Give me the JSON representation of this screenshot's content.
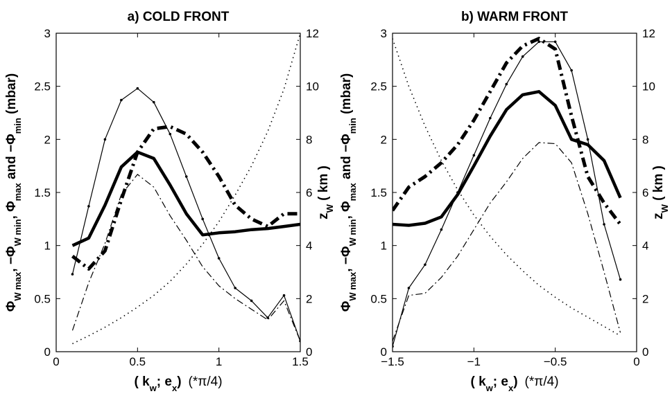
{
  "chart_data": [
    {
      "type": "line",
      "title": "a) COLD FRONT",
      "xlabel": {
        "open": "( ",
        "k": "k",
        "k_sub": "w",
        "sep": "; ",
        "e": "e",
        "e_sub": "x",
        "close": ")",
        "unit": "(*π/4)"
      },
      "ylabel_left": {
        "a": "Φ",
        "a_sub": "W max",
        "b": ", −Φ",
        "b_sub": "W min",
        "c": ", Φ",
        "c_sub": "max",
        "d": " and −Φ",
        "d_sub": "min",
        "unit": " (mbar)"
      },
      "ylabel_right": {
        "main": "z",
        "sub": "W",
        "unit": " ( km )"
      },
      "xlim": [
        0,
        1.5
      ],
      "ylim_left": [
        0,
        3
      ],
      "ylim_right": [
        0,
        12
      ],
      "xticks": [
        0,
        0.5,
        1,
        1.5
      ],
      "xtick_labels": [
        "0",
        "0.5",
        "1",
        "1.5"
      ],
      "yticks_left": [
        0,
        0.5,
        1,
        1.5,
        2,
        2.5,
        3
      ],
      "ytick_labels_left": [
        "0",
        "0.5",
        "1",
        "1.5",
        "2",
        "2.5",
        "3"
      ],
      "yticks_right": [
        0,
        2,
        4,
        6,
        8,
        10,
        12
      ],
      "ytick_labels_right": [
        "0",
        "2",
        "4",
        "6",
        "8",
        "10",
        "12"
      ],
      "series": [
        {
          "style": "thin-solid",
          "axis": "left",
          "x": [
            0.1,
            0.2,
            0.3,
            0.4,
            0.5,
            0.6,
            0.7,
            0.8,
            0.9,
            1.0,
            1.1,
            1.2,
            1.3,
            1.4,
            1.5
          ],
          "y": [
            0.73,
            1.37,
            2.0,
            2.37,
            2.48,
            2.35,
            2.05,
            1.65,
            1.25,
            0.88,
            0.6,
            0.48,
            0.32,
            0.53,
            0.1
          ]
        },
        {
          "style": "thick-solid",
          "axis": "left",
          "x": [
            0.1,
            0.2,
            0.3,
            0.4,
            0.5,
            0.6,
            0.7,
            0.8,
            0.9,
            1.0,
            1.1,
            1.2,
            1.3,
            1.4,
            1.5
          ],
          "y": [
            1.0,
            1.07,
            1.38,
            1.74,
            1.88,
            1.82,
            1.57,
            1.3,
            1.1,
            1.12,
            1.13,
            1.15,
            1.16,
            1.18,
            1.2
          ]
        },
        {
          "style": "thick-dashdot",
          "axis": "left",
          "x": [
            0.1,
            0.2,
            0.3,
            0.4,
            0.5,
            0.6,
            0.7,
            0.8,
            0.9,
            1.0,
            1.1,
            1.2,
            1.3,
            1.4,
            1.5
          ],
          "y": [
            0.9,
            0.78,
            0.95,
            1.43,
            1.88,
            2.1,
            2.12,
            2.05,
            1.88,
            1.65,
            1.38,
            1.25,
            1.18,
            1.3,
            1.3
          ]
        },
        {
          "style": "thin-dashdot",
          "axis": "left",
          "x": [
            0.1,
            0.2,
            0.3,
            0.4,
            0.5,
            0.6,
            0.7,
            0.8,
            0.9,
            1.0,
            1.1,
            1.2,
            1.3,
            1.4,
            1.5
          ],
          "y": [
            0.2,
            0.65,
            1.02,
            1.48,
            1.67,
            1.55,
            1.28,
            1.05,
            0.8,
            0.62,
            0.5,
            0.4,
            0.3,
            0.48,
            0.1
          ]
        },
        {
          "style": "dotted",
          "axis": "right",
          "x": [
            0.1,
            0.2,
            0.3,
            0.4,
            0.5,
            0.6,
            0.7,
            0.8,
            0.9,
            1.0,
            1.1,
            1.2,
            1.3,
            1.4,
            1.5
          ],
          "y": [
            0.3,
            0.6,
            0.92,
            1.28,
            1.68,
            2.12,
            2.65,
            3.3,
            4.05,
            4.9,
            5.9,
            7.0,
            8.3,
            9.9,
            12.0
          ]
        }
      ]
    },
    {
      "type": "line",
      "title": "b) WARM FRONT",
      "xlabel": {
        "open": "( ",
        "k": "k",
        "k_sub": "w",
        "sep": "; ",
        "e": "e",
        "e_sub": "x",
        "close": ")",
        "unit": "(*π/4)"
      },
      "ylabel_left": {
        "a": "Φ",
        "a_sub": "W max",
        "b": ", −Φ",
        "b_sub": "W min",
        "c": ", Φ",
        "c_sub": "max",
        "d": " and −Φ",
        "d_sub": "min",
        "unit": " (mbar)"
      },
      "ylabel_right": {
        "main": "z",
        "sub": "W",
        "unit": " ( km )"
      },
      "xlim": [
        -1.5,
        0
      ],
      "ylim_left": [
        0,
        3
      ],
      "ylim_right": [
        0,
        12
      ],
      "xticks": [
        -1.5,
        -1,
        -0.5,
        0
      ],
      "xtick_labels": [
        "−1.5",
        "−1",
        "−0.5",
        "0"
      ],
      "yticks_left": [
        0,
        0.5,
        1,
        1.5,
        2,
        2.5,
        3
      ],
      "ytick_labels_left": [
        "0",
        "0.5",
        "1",
        "1.5",
        "2",
        "2.5",
        "3"
      ],
      "yticks_right": [
        0,
        2,
        4,
        6,
        8,
        10,
        12
      ],
      "ytick_labels_right": [
        "0",
        "2",
        "4",
        "6",
        "8",
        "10",
        "12"
      ],
      "series": [
        {
          "style": "thin-solid",
          "axis": "left",
          "x": [
            -1.5,
            -1.4,
            -1.3,
            -1.2,
            -1.1,
            -1.0,
            -0.9,
            -0.8,
            -0.7,
            -0.6,
            -0.5,
            -0.4,
            -0.3,
            -0.2,
            -0.1
          ],
          "y": [
            0.05,
            0.6,
            0.82,
            1.15,
            1.5,
            1.85,
            2.2,
            2.52,
            2.78,
            2.92,
            2.92,
            2.65,
            2.0,
            1.2,
            0.68
          ]
        },
        {
          "style": "thick-solid",
          "axis": "left",
          "x": [
            -1.5,
            -1.4,
            -1.3,
            -1.2,
            -1.1,
            -1.0,
            -0.9,
            -0.8,
            -0.7,
            -0.6,
            -0.5,
            -0.4,
            -0.3,
            -0.2,
            -0.1
          ],
          "y": [
            1.2,
            1.19,
            1.21,
            1.27,
            1.48,
            1.75,
            2.03,
            2.28,
            2.42,
            2.45,
            2.32,
            2.0,
            1.95,
            1.8,
            1.45
          ]
        },
        {
          "style": "thick-dashdot",
          "axis": "left",
          "x": [
            -1.5,
            -1.4,
            -1.3,
            -1.2,
            -1.1,
            -1.0,
            -0.9,
            -0.8,
            -0.7,
            -0.6,
            -0.5,
            -0.4,
            -0.3,
            -0.2,
            -0.1
          ],
          "y": [
            1.33,
            1.55,
            1.65,
            1.78,
            1.95,
            2.18,
            2.45,
            2.72,
            2.88,
            2.95,
            2.85,
            2.22,
            1.65,
            1.4,
            1.2
          ]
        },
        {
          "style": "thin-dashdot",
          "axis": "left",
          "x": [
            -1.5,
            -1.4,
            -1.3,
            -1.2,
            -1.1,
            -1.0,
            -0.9,
            -0.8,
            -0.7,
            -0.6,
            -0.5,
            -0.4,
            -0.3,
            -0.2,
            -0.1
          ],
          "y": [
            0.1,
            0.53,
            0.55,
            0.7,
            0.9,
            1.15,
            1.4,
            1.6,
            1.82,
            1.97,
            1.96,
            1.78,
            1.3,
            0.75,
            0.18
          ]
        },
        {
          "style": "dotted",
          "axis": "right",
          "x": [
            -1.5,
            -1.4,
            -1.3,
            -1.2,
            -1.1,
            -1.0,
            -0.9,
            -0.8,
            -0.7,
            -0.6,
            -0.5,
            -0.4,
            -0.3,
            -0.2,
            -0.1
          ],
          "y": [
            11.8,
            10.0,
            8.5,
            7.2,
            6.1,
            5.15,
            4.35,
            3.65,
            3.05,
            2.5,
            2.05,
            1.65,
            1.3,
            0.95,
            0.6
          ]
        }
      ]
    }
  ]
}
